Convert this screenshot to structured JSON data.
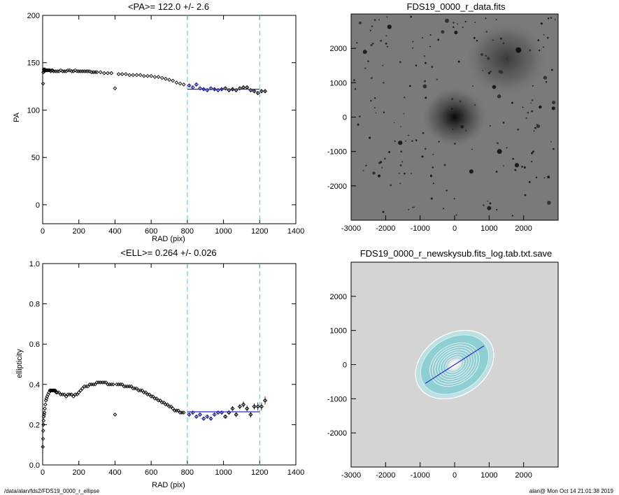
{
  "chart_data": [
    {
      "type": "scatter",
      "title": "<PA>= 122.0 +/-   2.6",
      "xlabel": "RAD (pix)",
      "ylabel": "PA",
      "xlim": [
        0,
        1400
      ],
      "ylim": [
        -20,
        200
      ],
      "xticks": [
        0,
        200,
        400,
        600,
        800,
        1000,
        1200,
        1400
      ],
      "yticks": [
        0,
        50,
        100,
        150,
        200
      ],
      "grid": false,
      "vlines": [
        800,
        1200
      ],
      "fit_line": {
        "x": [
          800,
          1200
        ],
        "y": 122.0
      },
      "series": [
        {
          "values_x": [
            2,
            4,
            6,
            8,
            10,
            12,
            15,
            18,
            22,
            26,
            30,
            35,
            40,
            45,
            50,
            55,
            60,
            70,
            80,
            90,
            100,
            110,
            120,
            130,
            140,
            150,
            160,
            170,
            180,
            190,
            200,
            210,
            220,
            230,
            240,
            250,
            260,
            270,
            280,
            290,
            300,
            320,
            340,
            360,
            380,
            420,
            440,
            460,
            480,
            500,
            520,
            540,
            560,
            580,
            600,
            620,
            640,
            660,
            680,
            700,
            720,
            740,
            760,
            780,
            400
          ],
          "values_y": [
            128,
            140,
            143,
            142,
            141,
            143,
            142,
            142,
            142,
            142,
            142,
            142,
            142,
            141,
            142,
            142,
            141,
            141,
            141,
            141,
            142,
            141,
            141,
            141,
            142,
            142,
            141,
            141,
            142,
            141,
            141,
            141,
            141,
            141,
            141,
            141,
            141,
            140,
            140,
            140,
            140,
            140,
            139,
            139,
            139,
            138,
            138,
            138,
            137,
            137,
            137,
            137,
            136,
            136,
            136,
            135,
            135,
            134,
            133,
            132,
            131,
            129,
            128,
            127,
            123
          ]
        },
        {
          "values_x": [
            810,
            830,
            850,
            870,
            890,
            910,
            930,
            950,
            970,
            990,
            1010,
            1030,
            1050,
            1070,
            1090,
            1110,
            1130,
            1150,
            1170,
            1190,
            1210,
            1230
          ],
          "values_y": [
            126,
            124,
            127,
            123,
            122,
            121,
            123,
            122,
            121,
            122,
            123,
            121,
            122,
            121,
            123,
            124,
            124,
            121,
            120,
            118,
            120,
            120
          ],
          "errors": [
            1,
            1,
            1.5,
            1.5,
            1.5,
            1.5,
            1.5,
            1.5,
            1.5,
            1.5,
            1.5,
            1.5,
            2,
            2,
            2,
            2,
            2,
            2,
            2,
            2,
            2,
            2
          ]
        }
      ]
    },
    {
      "type": "scatter",
      "title": "<ELL>= 0.264 +/-  0.026",
      "xlabel": "RAD (pix)",
      "ylabel": "ellipticity",
      "xlim": [
        0,
        1400
      ],
      "ylim": [
        0,
        1
      ],
      "xticks": [
        0,
        200,
        400,
        600,
        800,
        1000,
        1200,
        1400
      ],
      "yticks": [
        0.0,
        0.2,
        0.4,
        0.6,
        0.8,
        1.0
      ],
      "ytick_labels": [
        "0.0",
        "0.2",
        "0.4",
        "0.6",
        "0.8",
        "1.0"
      ],
      "grid": false,
      "vlines": [
        800,
        1200
      ],
      "fit_line": {
        "x": [
          800,
          1200
        ],
        "y": 0.264
      },
      "series": [
        {
          "values_x": [
            1,
            2,
            3,
            4,
            5,
            6,
            8,
            10,
            12,
            15,
            18,
            21,
            25,
            30,
            35,
            40,
            45,
            50,
            55,
            60,
            65,
            70,
            75,
            80,
            90,
            100,
            110,
            120,
            130,
            140,
            150,
            160,
            170,
            180,
            190,
            200,
            210,
            220,
            230,
            240,
            250,
            260,
            270,
            280,
            290,
            300,
            310,
            320,
            330,
            340,
            350,
            360,
            370,
            380,
            390,
            410,
            420,
            430,
            440,
            450,
            460,
            470,
            480,
            490,
            500,
            510,
            520,
            530,
            540,
            550,
            560,
            570,
            580,
            590,
            600,
            610,
            620,
            630,
            640,
            650,
            660,
            670,
            680,
            690,
            700,
            710,
            720,
            730,
            740,
            750,
            760,
            770,
            780,
            400
          ],
          "values_y": [
            0.09,
            0.13,
            0.17,
            0.2,
            0.22,
            0.24,
            0.25,
            0.26,
            0.28,
            0.3,
            0.32,
            0.33,
            0.34,
            0.35,
            0.36,
            0.37,
            0.37,
            0.37,
            0.37,
            0.37,
            0.37,
            0.37,
            0.36,
            0.36,
            0.36,
            0.35,
            0.35,
            0.35,
            0.34,
            0.35,
            0.35,
            0.35,
            0.34,
            0.35,
            0.35,
            0.36,
            0.37,
            0.38,
            0.39,
            0.39,
            0.39,
            0.4,
            0.4,
            0.4,
            0.4,
            0.41,
            0.41,
            0.41,
            0.41,
            0.41,
            0.41,
            0.4,
            0.4,
            0.4,
            0.4,
            0.4,
            0.4,
            0.4,
            0.4,
            0.39,
            0.39,
            0.39,
            0.39,
            0.39,
            0.38,
            0.38,
            0.38,
            0.37,
            0.37,
            0.37,
            0.36,
            0.36,
            0.35,
            0.35,
            0.34,
            0.34,
            0.33,
            0.33,
            0.32,
            0.32,
            0.31,
            0.31,
            0.3,
            0.3,
            0.29,
            0.29,
            0.28,
            0.27,
            0.27,
            0.27,
            0.26,
            0.26,
            0.26,
            0.25
          ]
        },
        {
          "values_x": [
            810,
            830,
            850,
            870,
            890,
            910,
            930,
            950,
            970,
            990,
            1010,
            1030,
            1050,
            1070,
            1090,
            1110,
            1130,
            1150,
            1170,
            1190,
            1210,
            1230
          ],
          "values_y": [
            0.25,
            0.26,
            0.24,
            0.25,
            0.23,
            0.24,
            0.23,
            0.25,
            0.26,
            0.26,
            0.24,
            0.26,
            0.28,
            0.25,
            0.29,
            0.3,
            0.28,
            0.25,
            0.29,
            0.29,
            0.29,
            0.32
          ],
          "errors": [
            0.005,
            0.005,
            0.008,
            0.008,
            0.008,
            0.008,
            0.008,
            0.008,
            0.01,
            0.01,
            0.01,
            0.01,
            0.012,
            0.012,
            0.012,
            0.015,
            0.015,
            0.015,
            0.015,
            0.02,
            0.02,
            0.02
          ]
        }
      ]
    },
    {
      "type": "image",
      "title": "FDS19_0000_r_data.fits",
      "xlim": [
        -3000,
        3000
      ],
      "ylim": [
        -3000,
        3000
      ],
      "xticks": [
        -3000,
        -2000,
        -1000,
        0,
        1000,
        2000
      ],
      "yticks": [
        -2000,
        -1000,
        0,
        1000,
        2000
      ]
    },
    {
      "type": "image",
      "title": "FDS19_0000_r_newskysub.fits_log.tab.txt.save",
      "xlim": [
        -3000,
        3000
      ],
      "ylim": [
        -3000,
        3000
      ],
      "xticks": [
        -3000,
        -2000,
        -1000,
        0,
        1000,
        2000
      ],
      "yticks": [
        -2000,
        -1000,
        0,
        1000,
        2000
      ]
    }
  ],
  "colors": {
    "points": "#000000",
    "fit_points": "#1a1aa0",
    "fit_line": "#2a2acc",
    "vline": "#3fd6c8",
    "axes": "#000000"
  },
  "footer": {
    "left": "/data/alan/fds2/FDS19_0000_r_ellipse",
    "right": "alan@  Mon Oct 14 21:01:38 2019"
  }
}
